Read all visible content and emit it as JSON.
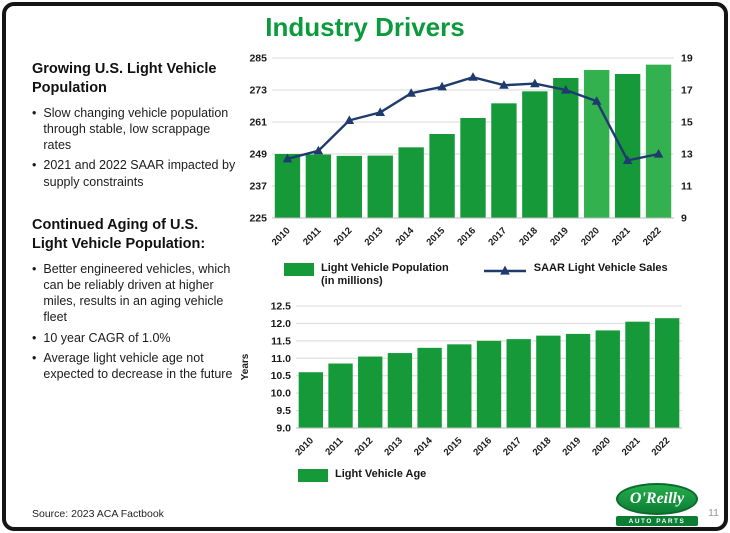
{
  "slide": {
    "title": "Industry Drivers",
    "page_number": "11",
    "source_label": "Source:  2023 ACA Factbook"
  },
  "left_panel": {
    "sections": [
      {
        "heading": "Growing U.S. Light Vehicle Population",
        "bullets": [
          "Slow changing vehicle population through stable, low scrappage rates",
          "2021 and 2022 SAAR impacted by supply constraints"
        ]
      },
      {
        "heading": "Continued Aging of U.S. Light Vehicle Population:",
        "bullets": [
          "Better engineered vehicles, which can be reliably driven at higher miles, results in an aging vehicle fleet",
          "10 year CAGR of 1.0%",
          "Average light vehicle age not expected to decrease in the future"
        ]
      }
    ]
  },
  "logo": {
    "name": "O'Reilly",
    "subtext": "AUTO PARTS"
  },
  "colors": {
    "brand_green": "#0B9B3D",
    "bar_green": "#169A39",
    "bar_green_light": "#33B14F",
    "line_navy": "#1F3B6E",
    "grid_gray": "#D8D8D8",
    "axis_text": "#1A1A1A"
  },
  "chart_data": [
    {
      "type": "bar",
      "subtype": "bar+line combo",
      "categories": [
        "2010",
        "2011",
        "2012",
        "2013",
        "2014",
        "2015",
        "2016",
        "2017",
        "2018",
        "2019",
        "2020",
        "2021",
        "2022"
      ],
      "left_axis": {
        "min": 225,
        "max": 285,
        "ticks": [
          "285",
          "273",
          "261",
          "249",
          "237",
          "225"
        ]
      },
      "right_axis": {
        "min": 9,
        "max": 19,
        "ticks": [
          "19",
          "17",
          "15",
          "13",
          "11",
          "9"
        ]
      },
      "grid": true,
      "series": [
        {
          "name": "Light Vehicle Population (in millions)",
          "type": "bar",
          "axis": "left",
          "values": [
            249,
            248.8,
            248.3,
            248.4,
            251.5,
            256.5,
            262.5,
            268,
            272.5,
            277.5,
            280.5,
            279,
            282.5
          ],
          "light_indices": [
            10,
            12
          ]
        },
        {
          "name": "SAAR Light Vehicle Sales",
          "type": "line",
          "axis": "right",
          "values": [
            12.7,
            13.2,
            15.1,
            15.6,
            16.8,
            17.2,
            17.8,
            17.3,
            17.4,
            17.0,
            16.3,
            12.6,
            13.0
          ]
        }
      ],
      "legend": [
        {
          "label": "Light Vehicle Population",
          "label2": "(in millions)",
          "marker": "bar"
        },
        {
          "label": "SAAR Light Vehicle Sales",
          "marker": "line"
        }
      ],
      "legend_position": "bottom"
    },
    {
      "type": "bar",
      "categories": [
        "2010",
        "2011",
        "2012",
        "2013",
        "2014",
        "2015",
        "2016",
        "2017",
        "2018",
        "2019",
        "2020",
        "2021",
        "2022"
      ],
      "ylabel": "Years",
      "left_axis": {
        "min": 9,
        "max": 12.5,
        "ticks": [
          "12.5",
          "12.0",
          "11.5",
          "11.0",
          "10.5",
          "10.0",
          "9.5",
          "9.0"
        ]
      },
      "grid": true,
      "series": [
        {
          "name": "Light Vehicle Age",
          "type": "bar",
          "axis": "left",
          "values": [
            10.6,
            10.85,
            11.05,
            11.15,
            11.3,
            11.4,
            11.5,
            11.55,
            11.65,
            11.7,
            11.8,
            12.05,
            12.15
          ]
        }
      ],
      "legend": [
        {
          "label": "Light Vehicle Age",
          "marker": "bar"
        }
      ],
      "legend_position": "bottom"
    }
  ]
}
